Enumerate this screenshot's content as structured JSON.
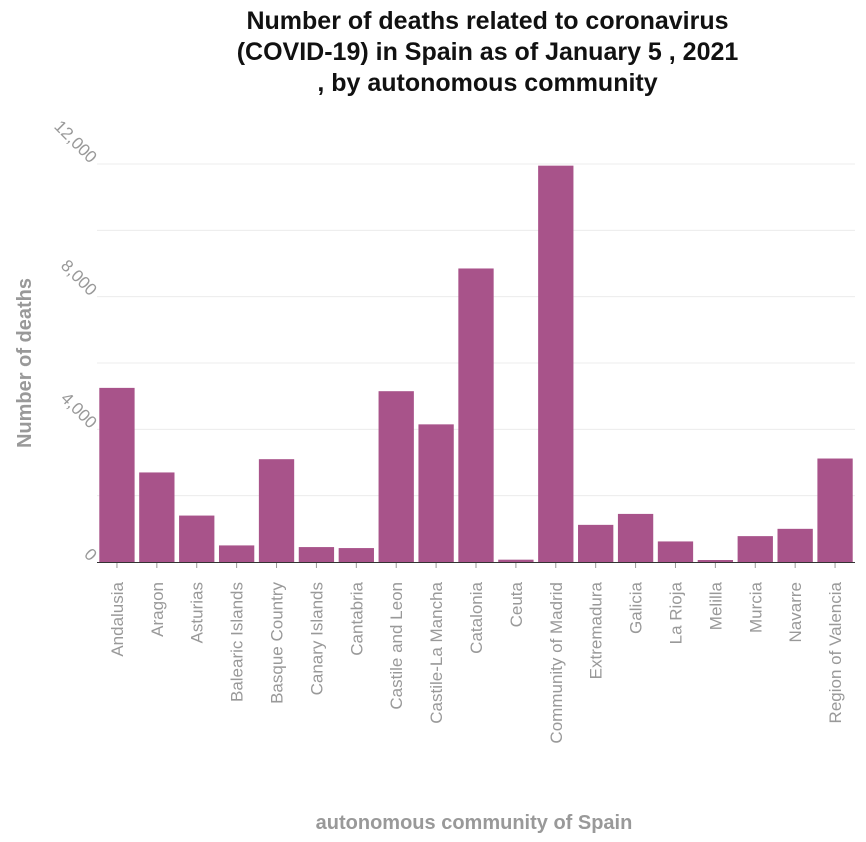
{
  "chart_data": {
    "type": "bar",
    "title": "Number of deaths related to coronavirus (COVID-19) in Spain as of January 5 , 2021 , by autonomous community",
    "title_lines": [
      "Number of deaths related to coronavirus",
      "(COVID-19) in Spain as of January 5 , 2021",
      ", by autonomous community"
    ],
    "xlabel": "autonomous community of Spain",
    "ylabel": "Number of deaths",
    "ylim": [
      0,
      12000
    ],
    "yticks": [
      0,
      4000,
      8000,
      12000
    ],
    "ytick_labels": [
      "0",
      "4,000",
      "8,000",
      "12,000"
    ],
    "grid": "horizontal",
    "legend": "none",
    "bar_color": "#a8538a",
    "categories": [
      "Andalusia",
      "Aragon",
      "Asturias",
      "Balearic Islands",
      "Basque Country",
      "Canary Islands",
      "Cantabria",
      "Castile and Leon",
      "Castile-La Mancha",
      "Catalonia",
      "Ceuta",
      "Community of Madrid",
      "Extremadura",
      "Galicia",
      "La Rioja",
      "Melilla",
      "Murcia",
      "Navarre",
      "Region of Valencia"
    ],
    "values": [
      5250,
      2700,
      1400,
      500,
      3100,
      450,
      420,
      5150,
      4150,
      8850,
      70,
      11950,
      1120,
      1450,
      620,
      60,
      780,
      1000,
      3120
    ]
  }
}
